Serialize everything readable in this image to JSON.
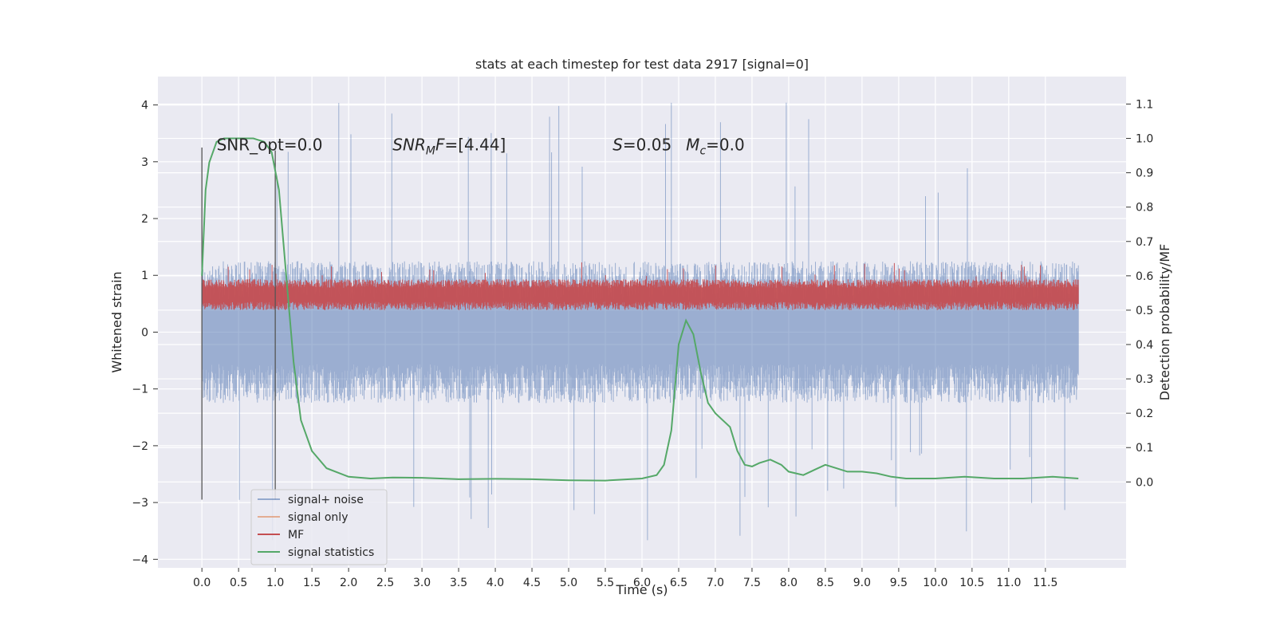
{
  "chart_data": {
    "type": "line",
    "title": "stats at each timestep for test data 2917 [signal=0]",
    "xlabel": "Time (s)",
    "ylabel": "Whitened strain",
    "ylabel_right": "Detection probability/MF",
    "xlim": [
      -0.6,
      12.6
    ],
    "ylim": [
      -4.15,
      4.5
    ],
    "ylim_right": [
      -0.25,
      1.18
    ],
    "x_ticks": [
      0.0,
      0.5,
      1.0,
      1.5,
      2.0,
      2.5,
      3.0,
      3.5,
      4.0,
      4.5,
      5.0,
      5.5,
      6.0,
      6.5,
      7.0,
      7.5,
      8.0,
      8.5,
      9.0,
      9.5,
      10.0,
      10.5,
      11.0,
      11.5
    ],
    "x_tick_labels": [
      "0.0",
      "0.5",
      "1.0",
      "1.5",
      "2.0",
      "2.5",
      "3.0",
      "3.5",
      "4.0",
      "4.5",
      "5.0",
      "5.5",
      "6.0",
      "6.5",
      "7.0",
      "7.5",
      "8.0",
      "8.5",
      "9.0",
      "9.5",
      "10.0",
      "10.5",
      "11.0",
      "11.5"
    ],
    "y_ticks": [
      4,
      3,
      2,
      1,
      0,
      -1,
      -2,
      -3,
      -4
    ],
    "y_tick_labels": [
      "4",
      "3",
      "2",
      "1",
      "0",
      "−1",
      "−2",
      "−3",
      "−4"
    ],
    "y_right_ticks": [
      1.1,
      1.0,
      0.9,
      0.8,
      0.7,
      0.6,
      0.5,
      0.4,
      0.3,
      0.2,
      0.1,
      0.0
    ],
    "y_right_tick_labels": [
      "1.1",
      "1.0",
      "0.9",
      "0.8",
      "0.7",
      "0.6",
      "0.5",
      "0.4",
      "0.3",
      "0.2",
      "0.1",
      "0.0"
    ],
    "grid": true,
    "legend_position": "lower-left",
    "colors": {
      "signal_noise": "#4c72b0",
      "signal_only": "#dd8452",
      "mf": "#c44e52",
      "signal_statistics": "#55a868",
      "background": "#eaeaf2",
      "grid": "#ffffff",
      "vline": "#555555"
    },
    "legend": [
      {
        "label": "signal+ noise",
        "color": "#4c72b0",
        "alpha": 0.55
      },
      {
        "label": "signal only",
        "color": "#dd8452",
        "alpha": 0.6
      },
      {
        "label": "MF",
        "color": "#c44e52",
        "alpha": 1
      },
      {
        "label": "signal statistics",
        "color": "#55a868",
        "alpha": 1
      }
    ],
    "annotations": [
      {
        "x": 0.2,
        "y": 3.2,
        "text": "SNR_opt=0.0",
        "italic": false
      },
      {
        "x": 2.6,
        "y": 3.2,
        "text": "SNR",
        "sub": "M",
        "rest": "F=[4.44]",
        "italic": true
      },
      {
        "x": 5.6,
        "y": 3.2,
        "text": "S",
        "rest": "=0.05",
        "italic": true
      },
      {
        "x": 6.6,
        "y": 3.2,
        "text": "M",
        "sub": "c",
        "rest": "=0.0",
        "italic": true
      }
    ],
    "vlines": [
      {
        "x": 0.0,
        "ymin": -2.95,
        "ymax": 3.25
      },
      {
        "x": 1.0,
        "ymin": -2.95,
        "ymax": 3.2
      }
    ],
    "series": [
      {
        "name": "signal+ noise",
        "axis": "left",
        "style": "noise_band",
        "x_range": [
          0.0,
          11.95
        ],
        "band": [
          -1.25,
          1.25
        ],
        "peak_high": 4.1,
        "peak_low": -3.7
      },
      {
        "name": "MF",
        "axis": "right",
        "style": "noise_band",
        "x_range": [
          0.0,
          11.95
        ],
        "band": [
          0.5,
          0.59
        ],
        "peak_high": 0.64,
        "peak_low": 0.5
      },
      {
        "name": "signal statistics",
        "axis": "right",
        "style": "line",
        "x": [
          0.0,
          0.05,
          0.1,
          0.2,
          0.3,
          0.5,
          0.7,
          0.85,
          0.95,
          1.05,
          1.15,
          1.25,
          1.35,
          1.5,
          1.7,
          2.0,
          2.3,
          2.6,
          3.0,
          3.5,
          4.0,
          4.5,
          5.0,
          5.5,
          6.0,
          6.2,
          6.3,
          6.4,
          6.5,
          6.6,
          6.7,
          6.8,
          6.9,
          7.0,
          7.2,
          7.3,
          7.4,
          7.5,
          7.6,
          7.75,
          7.9,
          8.0,
          8.2,
          8.35,
          8.5,
          8.65,
          8.8,
          9.0,
          9.2,
          9.4,
          9.6,
          10.0,
          10.4,
          10.8,
          11.2,
          11.6,
          11.95
        ],
        "values": [
          0.6,
          0.85,
          0.93,
          0.99,
          1.0,
          1.0,
          1.0,
          0.99,
          0.96,
          0.85,
          0.6,
          0.35,
          0.18,
          0.09,
          0.04,
          0.015,
          0.01,
          0.013,
          0.012,
          0.008,
          0.009,
          0.008,
          0.005,
          0.004,
          0.01,
          0.02,
          0.05,
          0.15,
          0.4,
          0.47,
          0.43,
          0.32,
          0.23,
          0.2,
          0.16,
          0.09,
          0.05,
          0.045,
          0.055,
          0.065,
          0.05,
          0.03,
          0.02,
          0.035,
          0.05,
          0.04,
          0.03,
          0.03,
          0.025,
          0.015,
          0.01,
          0.01,
          0.015,
          0.01,
          0.01,
          0.015,
          0.01
        ]
      }
    ]
  }
}
